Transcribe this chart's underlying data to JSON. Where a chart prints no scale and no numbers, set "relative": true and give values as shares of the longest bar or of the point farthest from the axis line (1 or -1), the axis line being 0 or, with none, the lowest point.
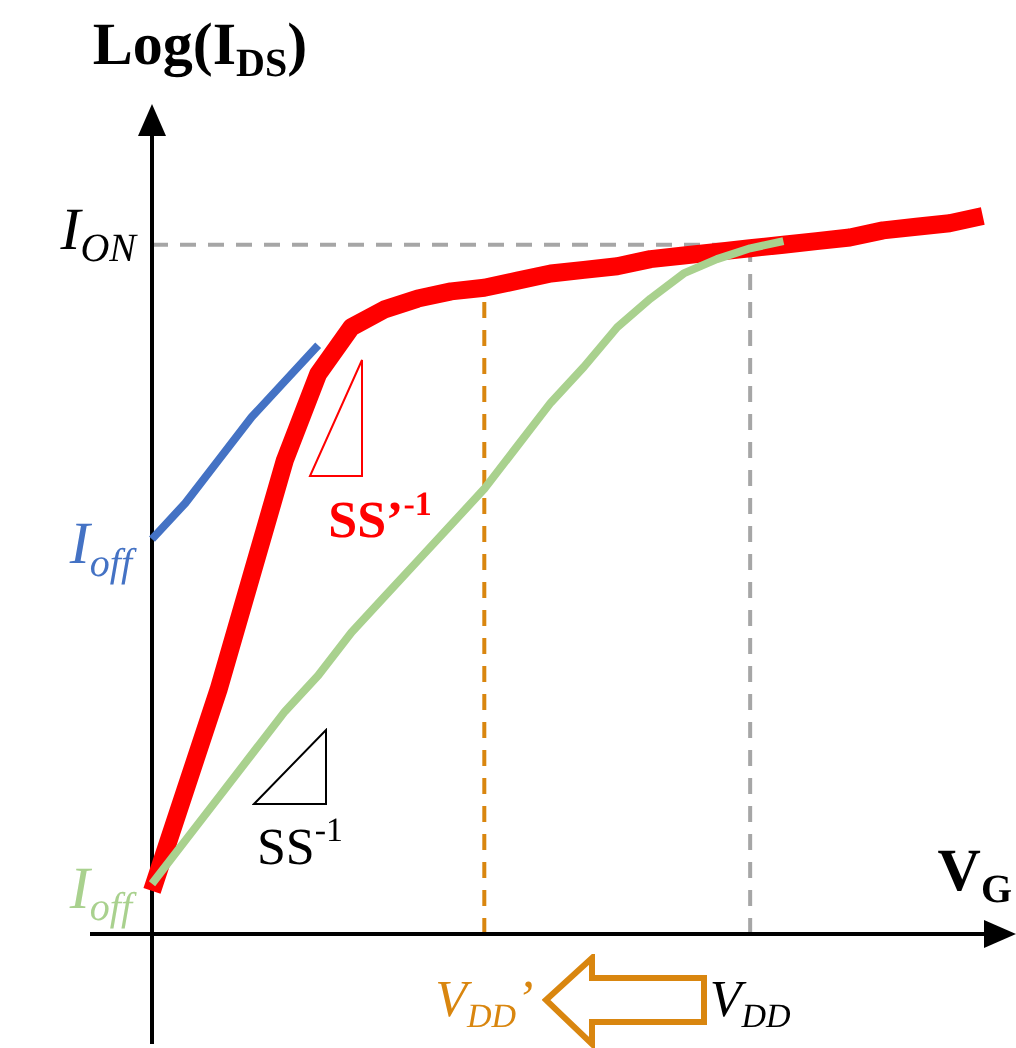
{
  "chart_data": {
    "type": "line",
    "relative": true,
    "xlabel": "V$_{G}$",
    "ylabel": "Log(I$_{DS}$)",
    "legend": false,
    "grid": false,
    "marker": "none",
    "categories": [
      null,
      null,
      null,
      null,
      null,
      null,
      null,
      null,
      null,
      null,
      "V$_{DD}$’",
      null,
      null,
      null,
      null,
      null,
      null,
      null,
      "V$_{DD}$",
      null,
      null,
      null,
      null,
      null,
      null,
      null
    ],
    "series": [
      {
        "name": "I$_{off}$",
        "color": "#4472c4",
        "values": [
          0.55,
          0.6,
          0.66,
          0.72,
          0.77,
          0.82,
          null,
          null,
          null,
          null,
          null,
          null,
          null,
          null,
          null,
          null,
          null,
          null,
          null,
          null,
          null,
          null,
          null,
          null,
          null,
          null
        ]
      },
      {
        "name": "I$_{off}$",
        "color": "#a9d18e",
        "values": [
          0.07,
          0.13,
          0.19,
          0.25,
          0.31,
          0.36,
          0.42,
          0.47,
          0.52,
          0.57,
          0.62,
          0.68,
          0.74,
          0.79,
          0.845,
          0.885,
          0.92,
          0.94,
          0.955,
          0.965,
          null,
          null,
          null,
          null,
          null,
          null
        ]
      },
      {
        "color": "#ff0000",
        "values": [
          0.06,
          0.2,
          0.34,
          0.5,
          0.66,
          0.78,
          0.845,
          0.87,
          0.885,
          0.895,
          0.9,
          0.91,
          0.92,
          0.925,
          0.93,
          0.94,
          0.945,
          0.95,
          0.955,
          0.96,
          0.965,
          0.97,
          0.98,
          0.985,
          0.99,
          1.0
        ]
      }
    ],
    "ref_lines": [
      {
        "axis": "y",
        "value": 0.96,
        "label": "I$_{ON}$",
        "color": "#a6a6a6",
        "line_style": "dashed"
      },
      {
        "axis": "x",
        "value": "V$_{DD}$’",
        "color": "#d9860f",
        "line_style": "dashed"
      },
      {
        "axis": "x",
        "value": "V$_{DD}$",
        "color": "#a6a6a6",
        "line_style": "dashed"
      }
    ],
    "annotations": [
      "SS’$^{-1}$",
      "SS$^{-1}$"
    ]
  }
}
